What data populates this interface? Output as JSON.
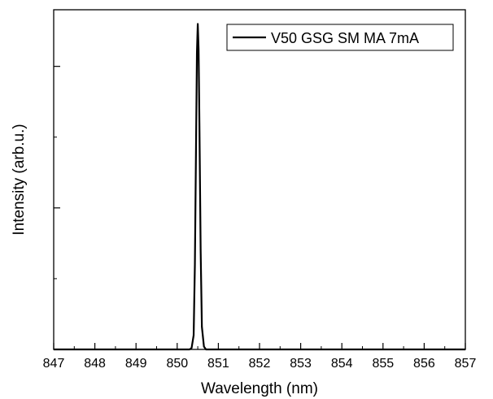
{
  "chart_data": {
    "type": "line",
    "title": "",
    "xlabel": "Wavelength (nm)",
    "ylabel": "Intensity (arb.u.)",
    "xlim": [
      847,
      857
    ],
    "ylim": [
      0,
      1.2
    ],
    "x_ticks": [
      847,
      848,
      849,
      850,
      851,
      852,
      853,
      854,
      855,
      856,
      857
    ],
    "x_tick_labels": [
      "847",
      "848",
      "849",
      "850",
      "851",
      "852",
      "853",
      "854",
      "855",
      "856",
      "857"
    ],
    "y_major_ticks": [
      0,
      0.5,
      1.0
    ],
    "y_tick_labels_shown": false,
    "grid": false,
    "legend": {
      "position": "top-right",
      "framed": true
    },
    "series": [
      {
        "name": "V50 GSG SM MA 7mA",
        "color": "#000000",
        "x": [
          847.0,
          849.0,
          850.0,
          850.3,
          850.35,
          850.4,
          850.43,
          850.46,
          850.48,
          850.5,
          850.52,
          850.54,
          850.57,
          850.6,
          850.65,
          850.7,
          851.0,
          853.0,
          857.0
        ],
        "y": [
          0.0,
          0.0,
          0.0,
          0.0,
          0.005,
          0.05,
          0.3,
          0.75,
          1.05,
          1.15,
          1.06,
          0.8,
          0.35,
          0.08,
          0.01,
          0.0,
          0.0,
          0.0,
          0.0
        ]
      }
    ]
  }
}
